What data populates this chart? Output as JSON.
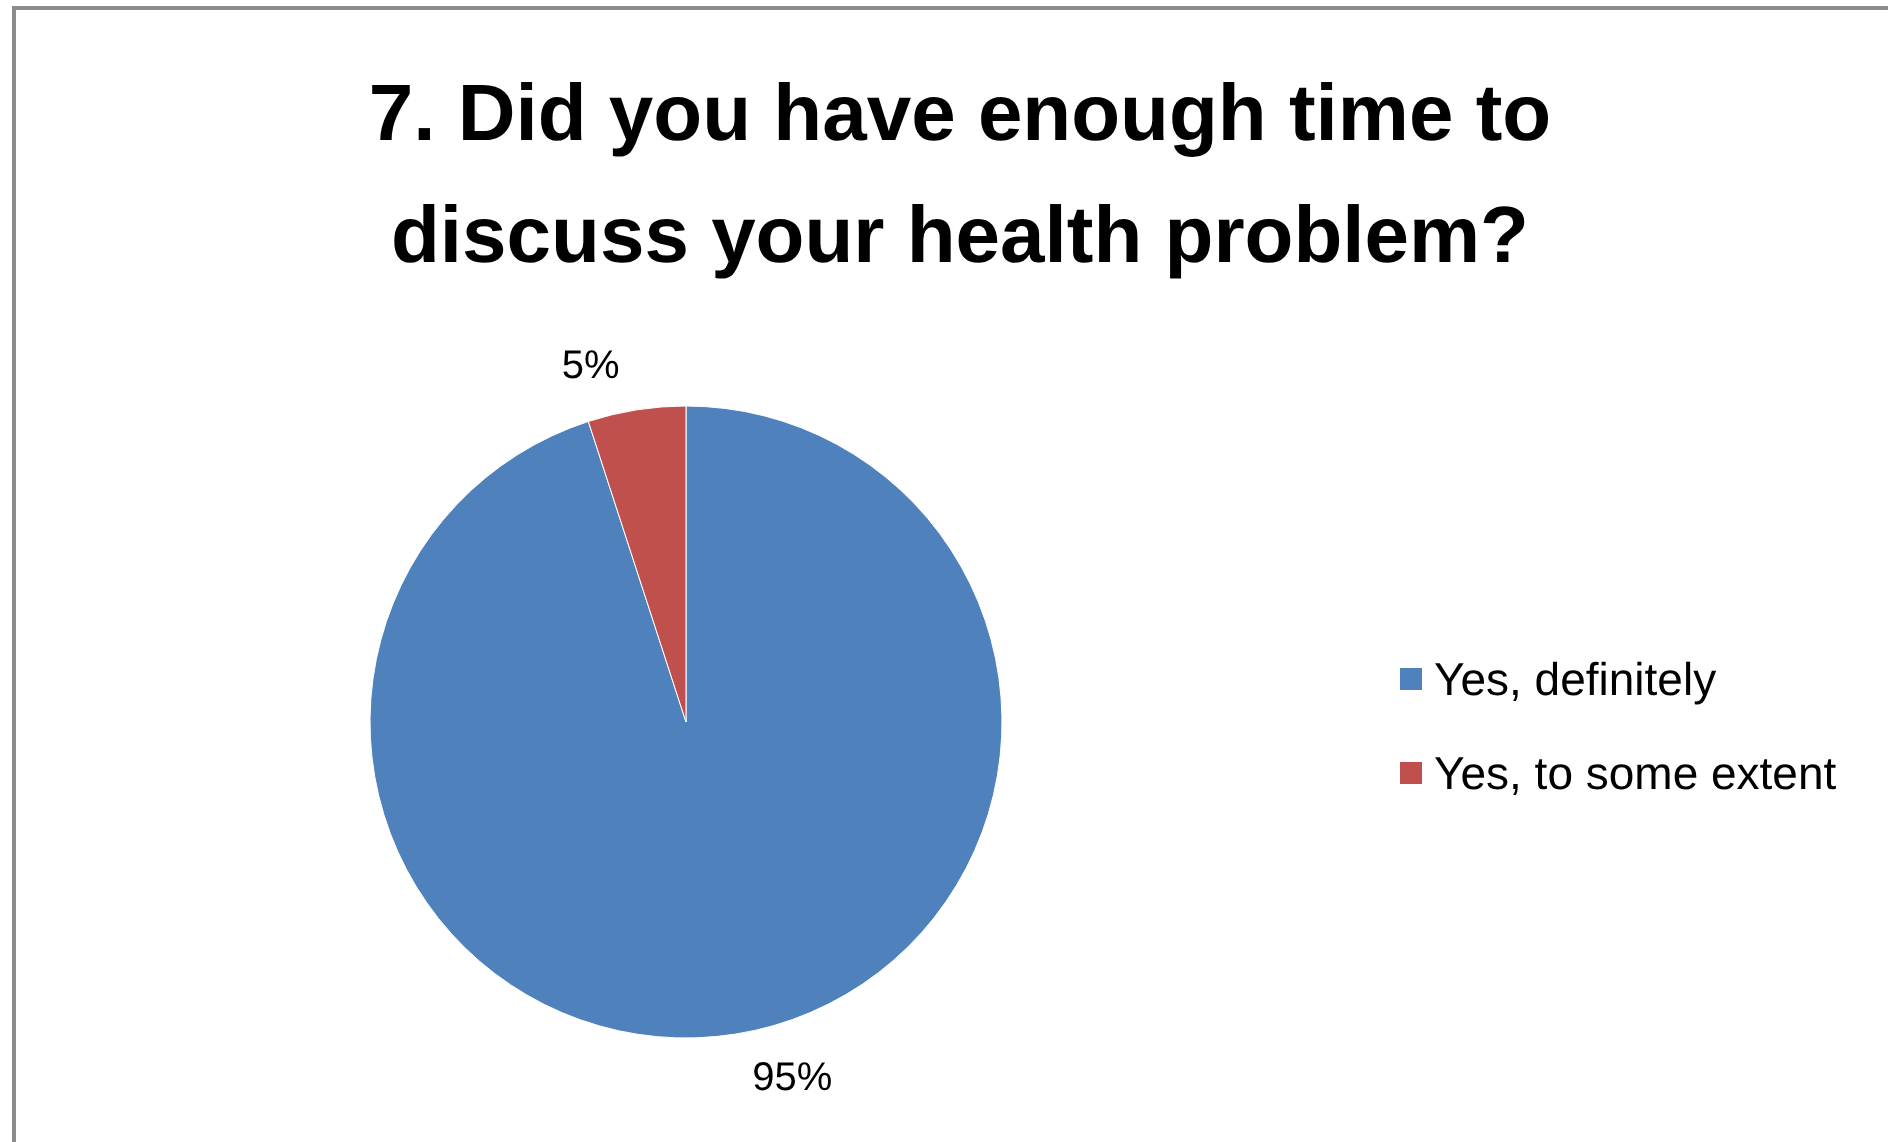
{
  "chart_data": {
    "type": "pie",
    "title": "7. Did you have enough time to discuss your health problem?",
    "categories": [
      "Yes, definitely",
      "Yes, to some extent"
    ],
    "values": [
      95,
      5
    ],
    "colors": [
      "#4f81bd",
      "#c0504d"
    ],
    "value_labels": [
      "95%",
      "5%"
    ],
    "legend": "right"
  }
}
